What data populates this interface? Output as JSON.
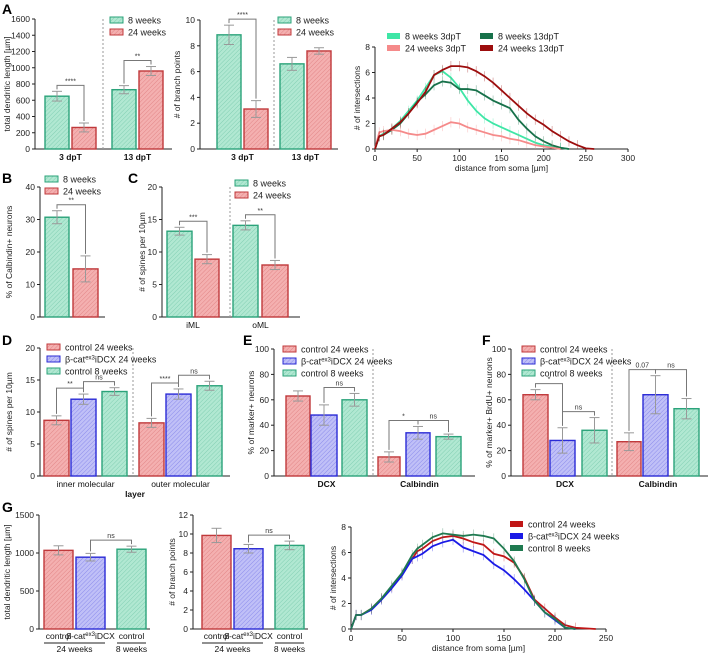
{
  "panel_labels": [
    "A",
    "B",
    "C",
    "D",
    "E",
    "F",
    "G"
  ],
  "colors": {
    "red": "#c0393b",
    "red_fill": "#f4b0b0",
    "blue": "#2b2bd6",
    "blue_fill": "#c0c0f7",
    "green": "#2ba37a",
    "green_fill": "#b1e8d2",
    "l_light_green": "#3ee6a6",
    "l_dark_green": "#17714a",
    "l_pink": "#f58a8a",
    "l_dark_red": "#9c0d0d",
    "l_red": "#c01616",
    "l_blue": "#1a1ae6",
    "l_green": "#1f7a50"
  },
  "chart_data": [
    {
      "id": "A1",
      "type": "bar",
      "ylabel": "total dendritic length [µm]",
      "ylim": [
        0,
        1600
      ],
      "ystep": 200,
      "categories": [
        "3 dpT",
        "13 dpT"
      ],
      "series": [
        {
          "name": "8 weeks",
          "color": "green"
        },
        {
          "name": "24 weeks",
          "color": "red"
        }
      ],
      "values": [
        [
          650,
          265
        ],
        [
          730,
          960
        ]
      ],
      "errors": [
        [
          60,
          55
        ],
        [
          50,
          55
        ]
      ],
      "comparisons": [
        {
          "cat": 0,
          "a": 0,
          "b": 1,
          "label": "****"
        },
        {
          "cat": 1,
          "a": 0,
          "b": 1,
          "label": "**"
        }
      ]
    },
    {
      "id": "A2",
      "type": "bar",
      "ylabel": "# of branch points",
      "ylim": [
        0,
        10
      ],
      "ystep": 2,
      "categories": [
        "3 dpT",
        "13 dpT"
      ],
      "series": [
        {
          "name": "8 weeks",
          "color": "green"
        },
        {
          "name": "24 weeks",
          "color": "red"
        }
      ],
      "values": [
        [
          8.85,
          3.1
        ],
        [
          6.6,
          7.6
        ]
      ],
      "errors": [
        [
          0.75,
          0.65
        ],
        [
          0.5,
          0.25
        ]
      ],
      "comparisons": [
        {
          "cat": 0,
          "a": 0,
          "b": 1,
          "label": "****"
        }
      ]
    },
    {
      "id": "A3",
      "type": "line",
      "xlabel": "distance from soma [µm]",
      "ylabel": "# of intersections",
      "xlim": [
        0,
        300
      ],
      "xstep": 50,
      "ylim": [
        0,
        8
      ],
      "ystep": 2,
      "x": [
        0,
        5,
        10,
        20,
        30,
        40,
        50,
        60,
        70,
        80,
        90,
        100,
        110,
        120,
        130,
        140,
        150,
        160,
        170,
        180,
        190,
        200,
        210,
        220,
        230,
        240,
        250,
        260
      ],
      "series": [
        {
          "name": "8 weeks 3dpT",
          "color": "l_light_green",
          "values": [
            0,
            1,
            1.2,
            1.6,
            2.2,
            3,
            3.8,
            4.8,
            5.8,
            6.1,
            5.6,
            4.8,
            3.8,
            3,
            2.4,
            2,
            1.7,
            1.4,
            1.1,
            0.8,
            0.5,
            0.3,
            0.2,
            0.1,
            0,
            null,
            null,
            null
          ]
        },
        {
          "name": "8 weeks 13dpT",
          "color": "l_dark_green",
          "values": [
            0,
            1,
            1.1,
            1.5,
            2,
            2.8,
            3.7,
            4.3,
            5,
            5.3,
            5.2,
            4.7,
            4.7,
            4.6,
            4.2,
            3.8,
            3.5,
            3.2,
            2.3,
            1.6,
            1,
            0.6,
            0.3,
            0.1,
            0,
            null,
            null,
            null
          ]
        },
        {
          "name": "24 weeks 3dpT",
          "color": "l_pink",
          "values": [
            0,
            1.3,
            1.4,
            1.5,
            1.4,
            1.2,
            1.1,
            1.2,
            1.5,
            1.8,
            2.1,
            2,
            1.7,
            1.5,
            1.3,
            1.1,
            1,
            0.8,
            0.7,
            0.5,
            0.3,
            0.2,
            0.1,
            0,
            null,
            null,
            null,
            null
          ]
        },
        {
          "name": "24 weeks 13dpT",
          "color": "l_dark_red",
          "values": [
            0,
            1,
            1.1,
            1.6,
            2.1,
            2.8,
            3.6,
            4.5,
            5.8,
            6.2,
            6.5,
            6.5,
            6.4,
            6.1,
            5.7,
            5.2,
            4.6,
            4,
            3.4,
            2.8,
            2.3,
            1.9,
            1.4,
            1,
            0.6,
            0.3,
            0.05,
            0
          ]
        }
      ]
    },
    {
      "id": "B",
      "type": "bar",
      "ylabel": "% of Calbindin+ neurons",
      "ylim": [
        0,
        40
      ],
      "ystep": 10,
      "categories": [
        ""
      ],
      "series": [
        {
          "name": "8 weeks",
          "color": "green"
        },
        {
          "name": "24 weeks",
          "color": "red"
        }
      ],
      "values": [
        [
          30.7,
          14.8
        ]
      ],
      "errors": [
        [
          2,
          4
        ]
      ],
      "comparisons": [
        {
          "cat": 0,
          "a": 0,
          "b": 1,
          "label": "**"
        }
      ]
    },
    {
      "id": "C",
      "type": "bar",
      "ylabel": "# of spines per 10µm",
      "ylim": [
        0,
        20
      ],
      "ystep": 5,
      "categories": [
        "iML",
        "oML"
      ],
      "series": [
        {
          "name": "8 weeks",
          "color": "green"
        },
        {
          "name": "24 weeks",
          "color": "red"
        }
      ],
      "values": [
        [
          13.2,
          8.9
        ],
        [
          14.1,
          8.0
        ]
      ],
      "errors": [
        [
          0.6,
          0.7
        ],
        [
          0.7,
          0.7
        ]
      ],
      "comparisons": [
        {
          "cat": 0,
          "a": 0,
          "b": 1,
          "label": "***"
        },
        {
          "cat": 1,
          "a": 0,
          "b": 1,
          "label": "**"
        }
      ]
    },
    {
      "id": "D",
      "type": "bar",
      "ylabel": "# of spines per 10µm",
      "xlabel": "layer",
      "ylim": [
        0,
        20
      ],
      "ystep": 5,
      "categories": [
        "inner molecular",
        "outer molecular"
      ],
      "series": [
        {
          "name": "control 24 weeks",
          "color": "red"
        },
        {
          "name": "β-cat",
          "sup": "ex3",
          "rest": "iDCX 24 weeks",
          "color": "blue"
        },
        {
          "name": "control 8 weeks",
          "color": "green"
        }
      ],
      "values": [
        [
          8.7,
          12.0,
          13.2
        ],
        [
          8.3,
          12.8,
          14.1
        ]
      ],
      "errors": [
        [
          0.7,
          0.8,
          0.6
        ],
        [
          0.7,
          0.8,
          0.7
        ]
      ],
      "comparisons": [
        {
          "cat": 0,
          "a": 0,
          "b": 1,
          "label": "**"
        },
        {
          "cat": 0,
          "a": 1,
          "b": 2,
          "label": "ns"
        },
        {
          "cat": 1,
          "a": 0,
          "b": 1,
          "label": "****"
        },
        {
          "cat": 1,
          "a": 1,
          "b": 2,
          "label": "ns"
        }
      ]
    },
    {
      "id": "E",
      "type": "bar",
      "ylabel": "% of marker+ neurons",
      "ylim": [
        0,
        100
      ],
      "ystep": 20,
      "categories": [
        "DCX",
        "Calbindin"
      ],
      "series": [
        {
          "name": "control 24 weeks",
          "color": "red"
        },
        {
          "name": "β-cat",
          "sup": "ex3",
          "rest": "iDCX 24 weeks",
          "color": "blue"
        },
        {
          "name": "control 8 weeks",
          "color": "green"
        }
      ],
      "values": [
        [
          63,
          48,
          60
        ],
        [
          15,
          34,
          31
        ]
      ],
      "errors": [
        [
          4,
          8,
          5
        ],
        [
          4,
          5,
          2
        ]
      ],
      "comparisons": [
        {
          "cat": 0,
          "a": 1,
          "b": 2,
          "label": "ns"
        },
        {
          "cat": 1,
          "a": 0,
          "b": 1,
          "label": "*"
        },
        {
          "cat": 1,
          "a": 1,
          "b": 2,
          "label": "ns"
        }
      ]
    },
    {
      "id": "F",
      "type": "bar",
      "ylabel": "% of marker+ BrdU+ neurons",
      "ylim": [
        0,
        100
      ],
      "ystep": 20,
      "categories": [
        "DCX",
        "Calbindin"
      ],
      "series": [
        {
          "name": "control 24 weeks",
          "color": "red"
        },
        {
          "name": "β-cat",
          "sup": "ex3",
          "rest": "iDCX 24 weeks",
          "color": "blue"
        },
        {
          "name": "control 8 weeks",
          "color": "green"
        }
      ],
      "values": [
        [
          64,
          28,
          36
        ],
        [
          27,
          64,
          53
        ]
      ],
      "errors": [
        [
          4,
          10,
          10
        ],
        [
          7,
          15,
          8
        ]
      ],
      "comparisons": [
        {
          "cat": 0,
          "a": 0,
          "b": 1,
          "label": "*"
        },
        {
          "cat": 0,
          "a": 1,
          "b": 2,
          "label": "ns"
        },
        {
          "cat": 1,
          "a": 0,
          "b": 1,
          "label": "0.07"
        },
        {
          "cat": 1,
          "a": 1,
          "b": 2,
          "label": "ns"
        }
      ]
    },
    {
      "id": "G1",
      "type": "bar",
      "ylabel": "total dendritic length [µm]",
      "ylim": [
        0,
        1500
      ],
      "ystep": 500,
      "categories": [
        ""
      ],
      "bar_labels": [
        {
          "name": "control"
        },
        {
          "name": "β-cat",
          "sup": "ex3",
          "rest": "iDCX"
        },
        {
          "name": "control"
        }
      ],
      "group_labels": [
        "24 weeks",
        "8 weeks"
      ],
      "series": [
        {
          "name": "control 24 weeks",
          "color": "red"
        },
        {
          "name": "β-cat ex3 iDCX 24 weeks",
          "color": "blue"
        },
        {
          "name": "control 8 weeks",
          "color": "green"
        }
      ],
      "values": [
        [
          1035,
          945,
          1050
        ]
      ],
      "errors": [
        [
          60,
          50,
          40
        ]
      ],
      "comparisons": [
        {
          "cat": 0,
          "a": 1,
          "b": 2,
          "label": "ns"
        }
      ]
    },
    {
      "id": "G2",
      "type": "bar",
      "ylabel": "# of branch points",
      "ylim": [
        0,
        12
      ],
      "ystep": 2,
      "categories": [
        ""
      ],
      "bar_labels": [
        {
          "name": "control"
        },
        {
          "name": "β-cat",
          "sup": "ex3",
          "rest": "iDCX"
        },
        {
          "name": "control"
        }
      ],
      "group_labels": [
        "24 weeks",
        "8 weeks"
      ],
      "series": [
        {
          "name": "control 24 weeks",
          "color": "red"
        },
        {
          "name": "β-cat ex3 iDCX 24 weeks",
          "color": "blue"
        },
        {
          "name": "control 8 weeks",
          "color": "green"
        }
      ],
      "values": [
        [
          9.85,
          8.45,
          8.8
        ]
      ],
      "errors": [
        [
          0.75,
          0.45,
          0.45
        ]
      ],
      "comparisons": [
        {
          "cat": 0,
          "a": 1,
          "b": 2,
          "label": "ns"
        }
      ]
    },
    {
      "id": "G3",
      "type": "line",
      "xlabel": "distance from soma [µm]",
      "ylabel": "# of intersections",
      "xlim": [
        0,
        250
      ],
      "xstep": 50,
      "ylim": [
        0,
        8
      ],
      "ystep": 2,
      "x": [
        0,
        5,
        10,
        20,
        30,
        40,
        50,
        60,
        65,
        70,
        80,
        90,
        100,
        110,
        120,
        130,
        140,
        150,
        160,
        170,
        180,
        190,
        200,
        210,
        220,
        230,
        240
      ],
      "series": [
        {
          "name": "control 24 weeks",
          "color": "l_red",
          "values": [
            0,
            1.1,
            1.1,
            1.6,
            2.4,
            3.3,
            4.3,
            5.5,
            6.1,
            6.3,
            6.9,
            7.2,
            7.3,
            7.1,
            6.8,
            6.6,
            5.9,
            5.7,
            5.2,
            4,
            2.3,
            1.6,
            0.9,
            0.3,
            0.1,
            0.05,
            0
          ]
        },
        {
          "name": "β-cat",
          "sup": "ex3",
          "rest": "iDCX 24 weeks",
          "color": "l_blue",
          "values": [
            0,
            1.1,
            1.1,
            1.5,
            2.3,
            3.2,
            4.2,
            5.5,
            5.7,
            5.9,
            6.5,
            6.8,
            7,
            6.4,
            6.1,
            5.8,
            5.1,
            4.6,
            3.9,
            3.1,
            2.2,
            1.3,
            0.7,
            0.1,
            0,
            null,
            null
          ]
        },
        {
          "name": "control 8 weeks",
          "color": "l_green",
          "values": [
            0,
            1.1,
            1.1,
            1.6,
            2.4,
            3.4,
            4.4,
            5.8,
            6.3,
            6.6,
            7.2,
            7.5,
            7.4,
            7.3,
            7.4,
            7.3,
            7.1,
            6.3,
            5.3,
            3.9,
            2.2,
            1.3,
            0.8,
            0.1,
            0,
            null,
            null
          ]
        }
      ]
    }
  ]
}
